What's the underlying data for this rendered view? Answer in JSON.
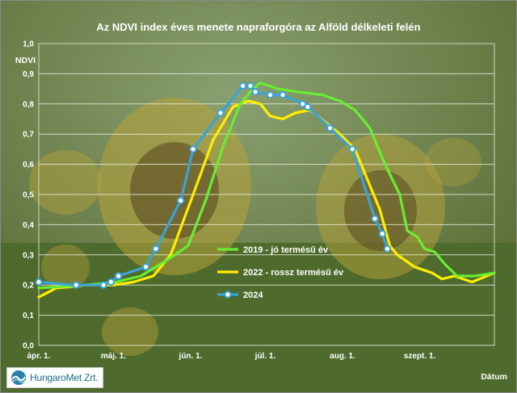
{
  "chart_data": {
    "type": "line",
    "title": "Az NDVI index éves menete napraforgóra az Alföld délkeleti felén",
    "ylabel": "NDVI",
    "xlabel": "Dátum",
    "ylim": [
      0,
      1
    ],
    "yticks": [
      "0,0",
      "0,1",
      "0,2",
      "0,3",
      "0,4",
      "0,5",
      "0,6",
      "0,7",
      "0,8",
      "0,9",
      "1,0"
    ],
    "xticks": [
      {
        "label": "ápr. 1.",
        "x": "2024-04-01"
      },
      {
        "label": "máj. 1.",
        "x": "2024-05-01"
      },
      {
        "label": "jún. 1.",
        "x": "2024-06-01"
      },
      {
        "label": "júl. 1.",
        "x": "2024-07-01"
      },
      {
        "label": "aug. 1.",
        "x": "2024-08-01"
      },
      {
        "label": "szept. 1.",
        "x": "2024-09-01"
      }
    ],
    "xlim": [
      "2024-04-01",
      "2024-10-01"
    ],
    "grid": true,
    "legend_position": "bottom-right",
    "series": [
      {
        "name": "2019 - jó termésű év",
        "color": "#66ee33",
        "marker": "none",
        "points": [
          {
            "x": "2024-04-01",
            "y": 0.19
          },
          {
            "x": "2024-04-20",
            "y": 0.2
          },
          {
            "x": "2024-05-02",
            "y": 0.21
          },
          {
            "x": "2024-05-12",
            "y": 0.23
          },
          {
            "x": "2024-05-22",
            "y": 0.28
          },
          {
            "x": "2024-05-31",
            "y": 0.33
          },
          {
            "x": "2024-06-07",
            "y": 0.48
          },
          {
            "x": "2024-06-14",
            "y": 0.66
          },
          {
            "x": "2024-06-21",
            "y": 0.8
          },
          {
            "x": "2024-06-26",
            "y": 0.85
          },
          {
            "x": "2024-06-29",
            "y": 0.87
          },
          {
            "x": "2024-07-06",
            "y": 0.85
          },
          {
            "x": "2024-07-14",
            "y": 0.84
          },
          {
            "x": "2024-07-24",
            "y": 0.83
          },
          {
            "x": "2024-07-31",
            "y": 0.81
          },
          {
            "x": "2024-08-06",
            "y": 0.78
          },
          {
            "x": "2024-08-12",
            "y": 0.72
          },
          {
            "x": "2024-08-17",
            "y": 0.62
          },
          {
            "x": "2024-08-21",
            "y": 0.55
          },
          {
            "x": "2024-08-24",
            "y": 0.5
          },
          {
            "x": "2024-08-27",
            "y": 0.38
          },
          {
            "x": "2024-08-31",
            "y": 0.36
          },
          {
            "x": "2024-09-03",
            "y": 0.32
          },
          {
            "x": "2024-09-07",
            "y": 0.31
          },
          {
            "x": "2024-09-11",
            "y": 0.27
          },
          {
            "x": "2024-09-16",
            "y": 0.23
          },
          {
            "x": "2024-09-23",
            "y": 0.23
          },
          {
            "x": "2024-10-01",
            "y": 0.24
          }
        ]
      },
      {
        "name": "2022 - rossz termésű év",
        "color": "#ffee00",
        "marker": "none",
        "points": [
          {
            "x": "2024-04-01",
            "y": 0.16
          },
          {
            "x": "2024-04-08",
            "y": 0.19
          },
          {
            "x": "2024-04-20",
            "y": 0.2
          },
          {
            "x": "2024-05-01",
            "y": 0.2
          },
          {
            "x": "2024-05-09",
            "y": 0.21
          },
          {
            "x": "2024-05-17",
            "y": 0.23
          },
          {
            "x": "2024-05-24",
            "y": 0.3
          },
          {
            "x": "2024-06-02",
            "y": 0.5
          },
          {
            "x": "2024-06-10",
            "y": 0.68
          },
          {
            "x": "2024-06-18",
            "y": 0.79
          },
          {
            "x": "2024-06-24",
            "y": 0.81
          },
          {
            "x": "2024-06-29",
            "y": 0.8
          },
          {
            "x": "2024-07-03",
            "y": 0.76
          },
          {
            "x": "2024-07-08",
            "y": 0.75
          },
          {
            "x": "2024-07-13",
            "y": 0.77
          },
          {
            "x": "2024-07-19",
            "y": 0.78
          },
          {
            "x": "2024-07-25",
            "y": 0.74
          },
          {
            "x": "2024-07-31",
            "y": 0.7
          },
          {
            "x": "2024-08-06",
            "y": 0.65
          },
          {
            "x": "2024-08-11",
            "y": 0.55
          },
          {
            "x": "2024-08-16",
            "y": 0.45
          },
          {
            "x": "2024-08-20",
            "y": 0.33
          },
          {
            "x": "2024-08-23",
            "y": 0.3
          },
          {
            "x": "2024-08-30",
            "y": 0.26
          },
          {
            "x": "2024-09-06",
            "y": 0.24
          },
          {
            "x": "2024-09-10",
            "y": 0.22
          },
          {
            "x": "2024-09-15",
            "y": 0.23
          },
          {
            "x": "2024-09-22",
            "y": 0.21
          },
          {
            "x": "2024-10-01",
            "y": 0.24
          }
        ]
      },
      {
        "name": "2024",
        "color": "#3aa3d6",
        "marker": "circle",
        "points": [
          {
            "x": "2024-04-01",
            "y": 0.21
          },
          {
            "x": "2024-04-16",
            "y": 0.2
          },
          {
            "x": "2024-04-27",
            "y": 0.2
          },
          {
            "x": "2024-04-30",
            "y": 0.21
          },
          {
            "x": "2024-05-03",
            "y": 0.23
          },
          {
            "x": "2024-05-14",
            "y": 0.26
          },
          {
            "x": "2024-05-18",
            "y": 0.32
          },
          {
            "x": "2024-05-28",
            "y": 0.48
          },
          {
            "x": "2024-06-02",
            "y": 0.65
          },
          {
            "x": "2024-06-13",
            "y": 0.77
          },
          {
            "x": "2024-06-22",
            "y": 0.86
          },
          {
            "x": "2024-06-25",
            "y": 0.86
          },
          {
            "x": "2024-06-27",
            "y": 0.84
          },
          {
            "x": "2024-07-03",
            "y": 0.83
          },
          {
            "x": "2024-07-08",
            "y": 0.83
          },
          {
            "x": "2024-07-16",
            "y": 0.8
          },
          {
            "x": "2024-07-18",
            "y": 0.79
          },
          {
            "x": "2024-07-27",
            "y": 0.72
          },
          {
            "x": "2024-08-05",
            "y": 0.65
          },
          {
            "x": "2024-08-14",
            "y": 0.42
          },
          {
            "x": "2024-08-17",
            "y": 0.37
          },
          {
            "x": "2024-08-19",
            "y": 0.32
          }
        ]
      }
    ]
  },
  "logo": {
    "text": "HungaroMet Zrt.",
    "icon": "hungaromet-logo-icon"
  }
}
